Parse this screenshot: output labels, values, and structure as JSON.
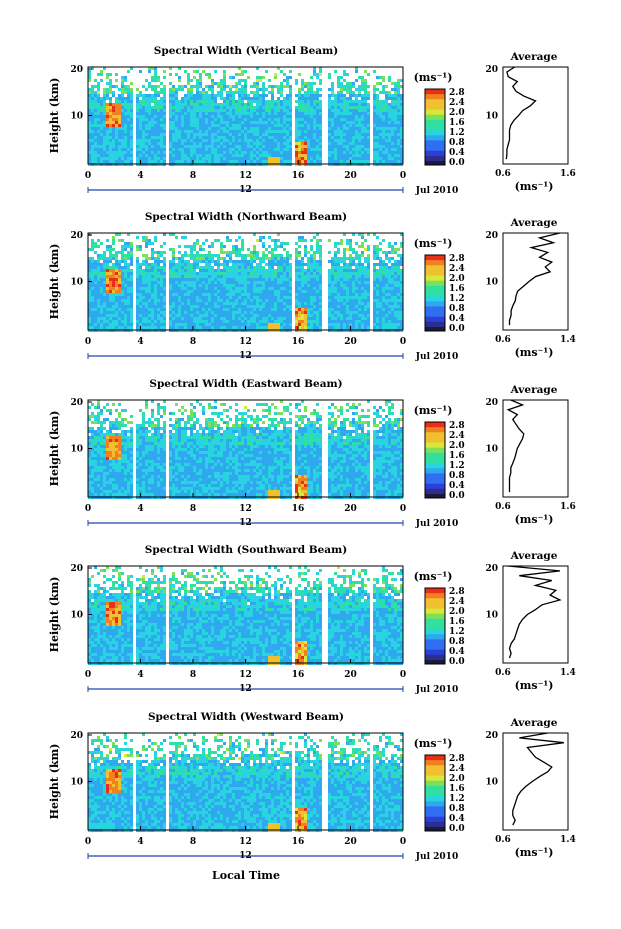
{
  "panels": [
    {
      "title": "Spectral Width (Vertical Beam)",
      "cbar_labels": [
        "2.8",
        "2.4",
        "2.0",
        "1.6",
        "1.2",
        "0.8",
        "0.4",
        "0.0"
      ],
      "avg_xticks": [
        "0.6",
        "1.6"
      ],
      "avg_profile": [
        [
          20,
          0.78
        ],
        [
          19,
          0.66
        ],
        [
          18,
          0.68
        ],
        [
          17,
          0.82
        ],
        [
          16,
          0.75
        ],
        [
          15,
          0.8
        ],
        [
          14,
          0.92
        ],
        [
          13,
          1.1
        ],
        [
          12,
          1.02
        ],
        [
          11,
          0.9
        ],
        [
          10,
          0.84
        ],
        [
          9,
          0.77
        ],
        [
          8,
          0.72
        ],
        [
          7,
          0.7
        ],
        [
          6,
          0.7
        ],
        [
          5,
          0.7
        ],
        [
          4,
          0.68
        ],
        [
          3,
          0.66
        ],
        [
          2,
          0.66
        ],
        [
          1,
          0.65
        ]
      ]
    },
    {
      "title": "Spectral Width (Northward Beam)",
      "cbar_labels": [
        "2.8",
        "2.4",
        "2.0",
        "1.6",
        "1.2",
        "0.8",
        "0.4",
        "0.0"
      ],
      "avg_xticks": [
        "0.6",
        "1.4"
      ],
      "avg_profile": [
        [
          20,
          1.3
        ],
        [
          19,
          1.05
        ],
        [
          18,
          1.22
        ],
        [
          17,
          0.95
        ],
        [
          16,
          1.15
        ],
        [
          15,
          1.05
        ],
        [
          14,
          1.2
        ],
        [
          13,
          1.12
        ],
        [
          12,
          1.18
        ],
        [
          11,
          1.0
        ],
        [
          10,
          0.92
        ],
        [
          9,
          0.85
        ],
        [
          8,
          0.78
        ],
        [
          7,
          0.76
        ],
        [
          6,
          0.75
        ],
        [
          5,
          0.72
        ],
        [
          4,
          0.7
        ],
        [
          3,
          0.7
        ],
        [
          2,
          0.68
        ],
        [
          1,
          0.68
        ]
      ]
    },
    {
      "title": "Spectral Width (Eastward Beam)",
      "cbar_labels": [
        "2.8",
        "2.4",
        "2.0",
        "1.6",
        "1.2",
        "0.8",
        "0.4",
        "0.0"
      ],
      "avg_xticks": [
        "0.6",
        "1.6"
      ],
      "avg_profile": [
        [
          20,
          0.72
        ],
        [
          19,
          0.9
        ],
        [
          18,
          0.68
        ],
        [
          17,
          0.82
        ],
        [
          16,
          0.75
        ],
        [
          15,
          0.8
        ],
        [
          14,
          0.85
        ],
        [
          13,
          0.92
        ],
        [
          12,
          0.9
        ],
        [
          11,
          0.86
        ],
        [
          10,
          0.82
        ],
        [
          9,
          0.8
        ],
        [
          8,
          0.78
        ],
        [
          7,
          0.75
        ],
        [
          6,
          0.72
        ],
        [
          5,
          0.72
        ],
        [
          4,
          0.7
        ],
        [
          3,
          0.7
        ],
        [
          2,
          0.7
        ],
        [
          1,
          0.7
        ]
      ]
    },
    {
      "title": "Spectral Width (Southward Beam)",
      "cbar_labels": [
        "2.8",
        "2.4",
        "2.0",
        "1.6",
        "1.2",
        "0.8",
        "0.4",
        "0.0"
      ],
      "avg_xticks": [
        "0.6",
        "1.4"
      ],
      "avg_profile": [
        [
          20,
          0.66
        ],
        [
          19,
          1.3
        ],
        [
          18,
          0.8
        ],
        [
          17,
          1.2
        ],
        [
          16,
          1.0
        ],
        [
          15,
          1.25
        ],
        [
          14,
          1.18
        ],
        [
          13,
          1.3
        ],
        [
          12,
          1.08
        ],
        [
          11,
          1.0
        ],
        [
          10,
          0.9
        ],
        [
          9,
          0.84
        ],
        [
          8,
          0.8
        ],
        [
          7,
          0.78
        ],
        [
          6,
          0.76
        ],
        [
          5,
          0.74
        ],
        [
          4,
          0.7
        ],
        [
          3,
          0.68
        ],
        [
          2,
          0.7
        ],
        [
          1,
          0.68
        ]
      ]
    },
    {
      "title": "Spectral Width (Westward Beam)",
      "cbar_labels": [
        "2.8",
        "2.4",
        "2.0",
        "1.6",
        "1.2",
        "0.8",
        "0.4",
        "0.0"
      ],
      "avg_xticks": [
        "0.6",
        "1.4"
      ],
      "avg_profile": [
        [
          20,
          1.15
        ],
        [
          19,
          0.8
        ],
        [
          18,
          1.35
        ],
        [
          17,
          0.9
        ],
        [
          16,
          0.95
        ],
        [
          15,
          1.0
        ],
        [
          14,
          1.1
        ],
        [
          13,
          1.2
        ],
        [
          12,
          1.15
        ],
        [
          11,
          1.05
        ],
        [
          10,
          0.96
        ],
        [
          9,
          0.88
        ],
        [
          8,
          0.82
        ],
        [
          7,
          0.78
        ],
        [
          6,
          0.76
        ],
        [
          5,
          0.74
        ],
        [
          4,
          0.72
        ],
        [
          3,
          0.72
        ],
        [
          2,
          0.75
        ],
        [
          1,
          0.72
        ]
      ]
    }
  ],
  "chart_data": {
    "type": "heatmap",
    "ylabel": "Height (km)",
    "xlabel": "Local Time",
    "yticks": [
      "20",
      "10"
    ],
    "xticks": [
      "0",
      "4",
      "8",
      "12",
      "16",
      "20",
      "0"
    ],
    "date_label": "12",
    "month_label": "Jul 2010",
    "colorbar_unit": "(ms⁻¹)",
    "colorbar_range": [
      0.0,
      2.8
    ],
    "average_title": "Average",
    "average_unit": "(ms⁻¹)",
    "data_gaps_local_time": [
      [
        3.4,
        3.6
      ],
      [
        5.8,
        6.0
      ],
      [
        15.4,
        15.7
      ],
      [
        17.8,
        18.1
      ],
      [
        21.3,
        21.6
      ]
    ]
  }
}
